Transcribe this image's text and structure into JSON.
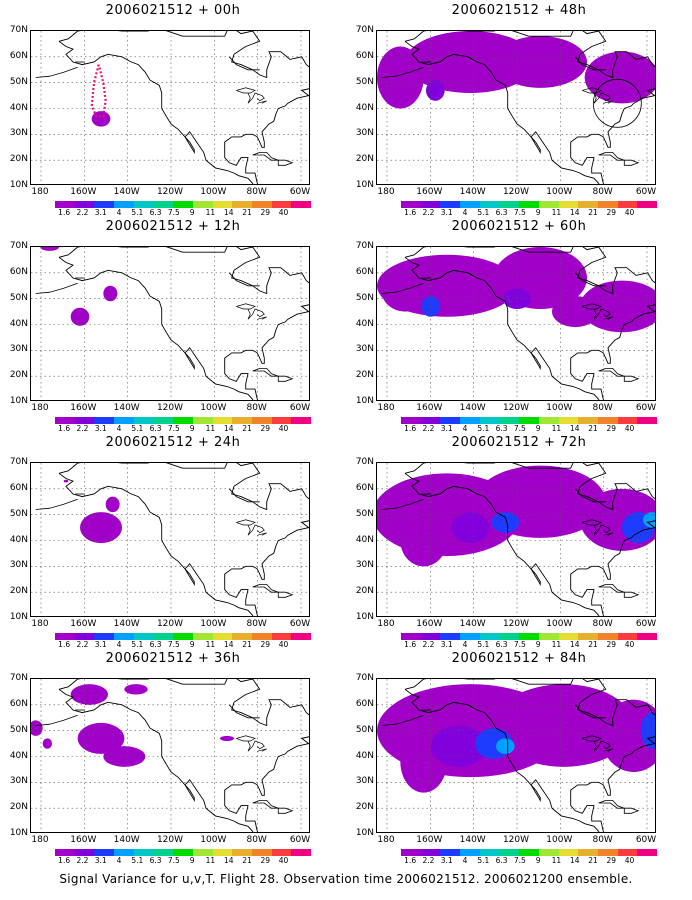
{
  "caption": "Signal Variance for u,v,T. Flight 28. Observation time 2006021512. 2006021200 ensemble.",
  "lat_labels": [
    "70N",
    "60N",
    "50N",
    "40N",
    "30N",
    "20N",
    "10N"
  ],
  "lon_labels": [
    "180",
    "160W",
    "140W",
    "120W",
    "100W",
    "80W",
    "60W"
  ],
  "colorbar_levels": [
    "1.6",
    "2.2",
    "3.1",
    "4",
    "5.1",
    "6.3",
    "7.5",
    "9",
    "11",
    "14",
    "21",
    "29",
    "40"
  ],
  "colorbar_colors": [
    "#a000c8",
    "#8200dc",
    "#1e3cff",
    "#00a0ff",
    "#00c8c8",
    "#00d28c",
    "#00dc00",
    "#a0e632",
    "#e6dc32",
    "#e6af2d",
    "#f08228",
    "#fa3c3c",
    "#f00082"
  ],
  "panels": [
    {
      "title": "2006021512 + 00h",
      "extent": 1
    },
    {
      "title": "2006021512 + 12h",
      "extent": 2
    },
    {
      "title": "2006021512 + 24h",
      "extent": 3
    },
    {
      "title": "2006021512 + 36h",
      "extent": 4
    },
    {
      "title": "2006021512 + 48h",
      "extent": 5
    },
    {
      "title": "2006021512 + 60h",
      "extent": 6
    },
    {
      "title": "2006021512 + 72h",
      "extent": 7
    },
    {
      "title": "2006021512 + 84h",
      "extent": 8
    }
  ]
}
